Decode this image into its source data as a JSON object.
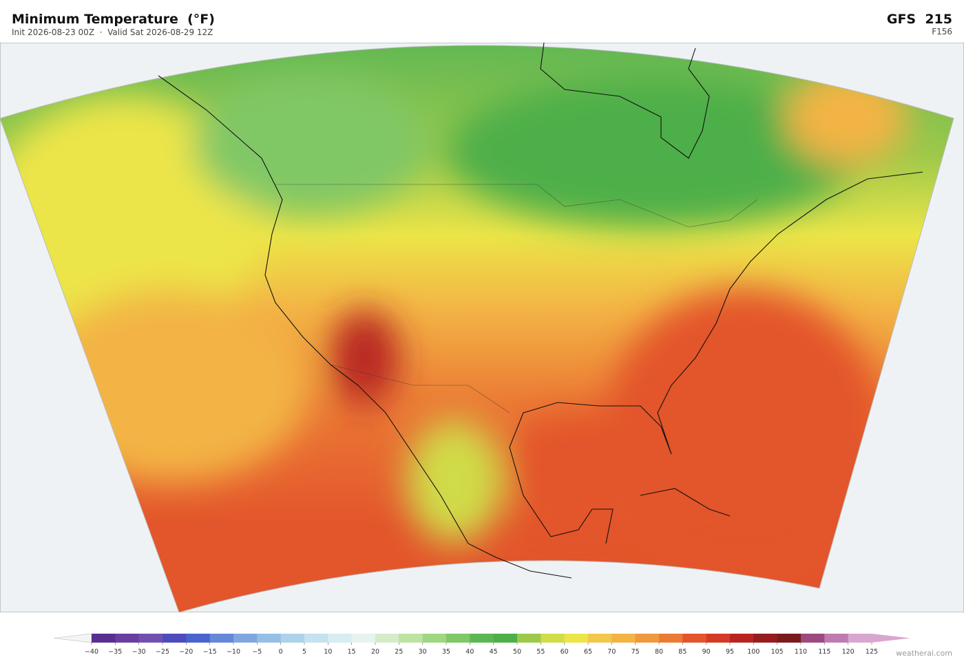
{
  "header": {
    "title": "Minimum Temperature  (°F)",
    "subtitle": "Init 2026-08-23 00Z  ·  Valid Sat 2026-08-29 12Z",
    "model": "GFS  215",
    "forecast_hour": "F156"
  },
  "colorbar": {
    "labels": [
      "−40",
      "−35",
      "−30",
      "−25",
      "−20",
      "−15",
      "−10",
      "−5",
      "0",
      "5",
      "10",
      "15",
      "20",
      "25",
      "30",
      "35",
      "40",
      "45",
      "50",
      "55",
      "60",
      "65",
      "70",
      "75",
      "80",
      "85",
      "90",
      "95",
      "100",
      "105",
      "110",
      "115",
      "120",
      "125"
    ],
    "colors": [
      "#5a2e91",
      "#6a3ea0",
      "#7350b0",
      "#4e4bbf",
      "#4a63cf",
      "#6688d8",
      "#7ea7e0",
      "#96bfe6",
      "#aed2ea",
      "#c4e2ef",
      "#d8edf2",
      "#e6f3ee",
      "#d5ecc8",
      "#bce3a0",
      "#9fd682",
      "#80c766",
      "#5cb655",
      "#4daf4a",
      "#9cc94a",
      "#d0dc48",
      "#ece548",
      "#f2c84a",
      "#f3b445",
      "#f0983d",
      "#eb7a35",
      "#e3552b",
      "#d43a26",
      "#b82521",
      "#951d20",
      "#7a1a1c",
      "#9c4a80",
      "#c07ab2",
      "#d9a6cf"
    ],
    "under_color": "#f4f4f4",
    "over_color": "#d9a6cf"
  },
  "credit": "weatherai.com"
}
